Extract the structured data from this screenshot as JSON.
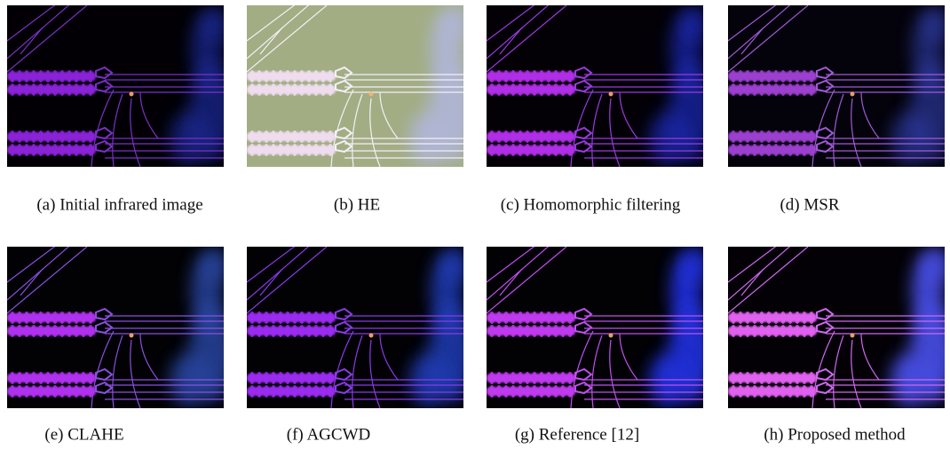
{
  "figure": {
    "panels": [
      {
        "caption": "(a) Initial infrared image"
      },
      {
        "caption": "(b) HE"
      },
      {
        "caption": "(c) Homomorphic filtering"
      },
      {
        "caption": "(d) MSR"
      },
      {
        "caption": "(e) CLAHE"
      },
      {
        "caption": "(f) AGCWD"
      },
      {
        "caption": "(g) Reference [12]"
      },
      {
        "caption": "(h) Proposed method"
      }
    ]
  }
}
